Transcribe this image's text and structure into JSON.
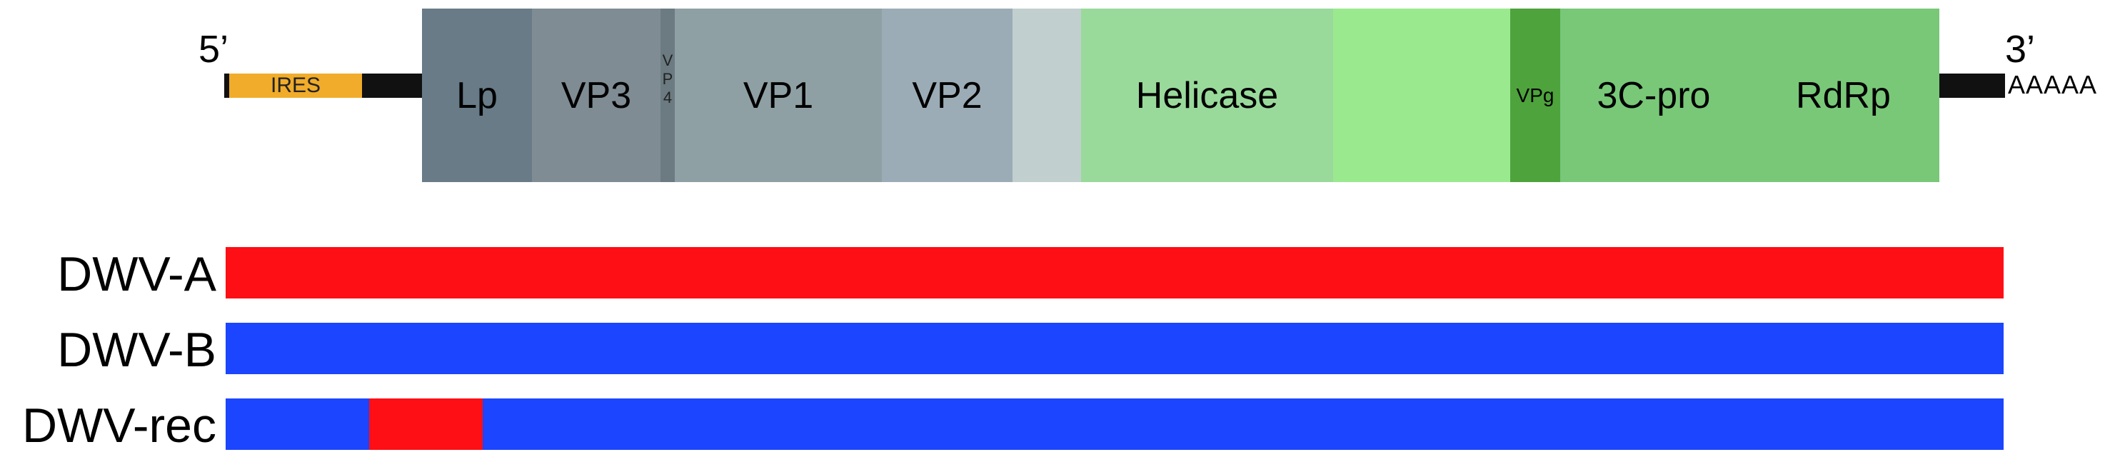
{
  "genome": {
    "five_prime_label": "5’",
    "three_prime_label": "3’",
    "ires_label": "IRES",
    "poly_a_label": "AAAAA",
    "segments": [
      {
        "label": "Lp",
        "color": "#687b87"
      },
      {
        "label": "VP3",
        "color": "#7f8c93"
      },
      {
        "label": "",
        "vp4_letters": [
          "V",
          "P",
          "4"
        ],
        "color": "#6b7b81"
      },
      {
        "label": "VP1",
        "color": "#8fa0a5"
      },
      {
        "label": "VP2",
        "color": "#9cacb6"
      },
      {
        "label": "",
        "color": "#c2cfcf"
      },
      {
        "label": "Helicase",
        "color": "#99da9b"
      },
      {
        "label": "",
        "color": "#9be98f"
      },
      {
        "label": "VPg",
        "color": "#4ea33c"
      },
      {
        "label": "3C-pro",
        "color": "#78c878"
      },
      {
        "label": "RdRp",
        "color": "#78c878"
      }
    ]
  },
  "strains": [
    {
      "label": "DWV-A",
      "color": "#fe0e15"
    },
    {
      "label": "DWV-B",
      "color": "#1b45fe"
    },
    {
      "label": "DWV-rec",
      "color": "#1b45fe",
      "insert_color": "#fe0e15"
    }
  ]
}
